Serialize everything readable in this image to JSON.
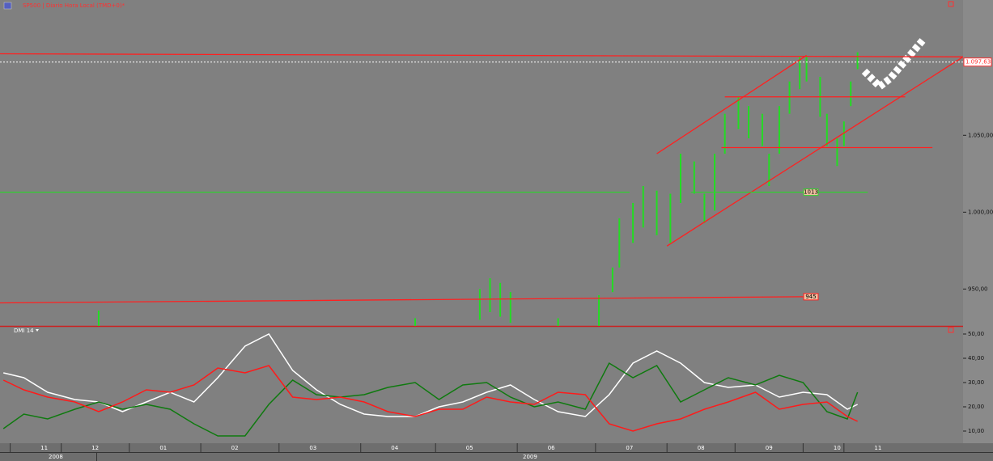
{
  "chart_data": [
    {
      "type": "range-bar",
      "title": "SP500 | Diario Hora Local (TMD+0)*",
      "color": "#22dd22",
      "x": [
        26,
        119,
        138,
        141,
        144,
        147,
        161,
        173,
        177,
        179,
        183,
        186,
        190,
        194,
        197,
        201,
        204,
        207,
        210,
        214,
        217,
        221,
        223,
        226,
        229,
        232,
        234,
        238,
        240,
        243,
        245,
        247,
        249
      ],
      "low": [
        920,
        920,
        930,
        935,
        932,
        928,
        920,
        920,
        948,
        964,
        980,
        990,
        985,
        980,
        1006,
        1012,
        993,
        1001,
        1038,
        1054,
        1048,
        1043,
        1017,
        1038,
        1064,
        1080,
        1085,
        1062,
        1043,
        1030,
        1043,
        1069,
        1093
      ],
      "high": [
        936,
        931,
        950,
        957,
        954,
        948,
        931,
        946,
        964,
        996,
        1006,
        1017,
        1014,
        1012,
        1038,
        1033,
        1012,
        1038,
        1064,
        1075,
        1069,
        1064,
        1038,
        1069,
        1085,
        1101,
        1101,
        1088,
        1064,
        1048,
        1059,
        1085,
        1104
      ],
      "xlim": [
        -3,
        280
      ],
      "ylim": [
        926,
        1138
      ],
      "yticks": [
        {
          "value": 950,
          "label": "950,00"
        },
        {
          "value": 1000,
          "label": "1.000,00"
        },
        {
          "value": 1050,
          "label": "1.050,00"
        }
      ],
      "last_price": {
        "value": 1097.63,
        "label": "1.097,63"
      },
      "levels": [
        {
          "value": 945,
          "color": "#ff2020"
        },
        {
          "value": 1013,
          "color": "#30d030"
        }
      ],
      "trendlines": [
        {
          "x": [
            -3,
            280
          ],
          "y": [
            1103,
            1101
          ],
          "color": "#ff2020"
        },
        {
          "x": [
            190,
            234
          ],
          "y": [
            1038,
            1102
          ],
          "color": "#ff2020"
        },
        {
          "x": [
            193,
            280
          ],
          "y": [
            978,
            1101
          ],
          "color": "#ff2020"
        },
        {
          "x": [
            210,
            263
          ],
          "y": [
            1075,
            1075
          ],
          "color": "#ff2020"
        },
        {
          "x": [
            209,
            271
          ],
          "y": [
            1042,
            1042
          ],
          "color": "#ff2020"
        },
        {
          "x": [
            -3,
            233
          ],
          "y": [
            941,
            945
          ],
          "color": "#ff2020"
        },
        {
          "x": [
            -3,
            182
          ],
          "y": [
            1013,
            1013
          ],
          "color": "#30d030"
        },
        {
          "x": [
            200,
            252
          ],
          "y": [
            1013,
            1013
          ],
          "color": "#30d030"
        }
      ]
    },
    {
      "type": "line",
      "title": "DMI 14",
      "x": [
        -2,
        4,
        11,
        19,
        26,
        33,
        40,
        47,
        54,
        61,
        69,
        76,
        83,
        90,
        97,
        104,
        111,
        119,
        126,
        133,
        140,
        147,
        154,
        161,
        169,
        176,
        183,
        190,
        197,
        204,
        211,
        219,
        226,
        233,
        240,
        246,
        249
      ],
      "series": [
        {
          "color": "#ffffff",
          "values": [
            34,
            32,
            26,
            23,
            22,
            18,
            22,
            26,
            22,
            32,
            45,
            50,
            35,
            27,
            21,
            17,
            16,
            16,
            20,
            22,
            26,
            29,
            23,
            18,
            16,
            25,
            38,
            43,
            38,
            30,
            28,
            29,
            24,
            26,
            25,
            19,
            21
          ]
        },
        {
          "color": "#0f7a0f",
          "values": [
            11,
            17,
            15,
            19,
            22,
            19,
            21,
            19,
            13,
            8,
            8,
            21,
            31,
            25,
            24,
            25,
            28,
            30,
            23,
            29,
            30,
            24,
            20,
            22,
            19,
            38,
            32,
            37,
            22,
            27,
            32,
            29,
            33,
            30,
            18,
            15,
            26
          ]
        },
        {
          "color": "#ff1a1a",
          "values": [
            31,
            27,
            24,
            22,
            18,
            22,
            27,
            26,
            29,
            36,
            34,
            37,
            24,
            23,
            24,
            22,
            18,
            16,
            19,
            19,
            24,
            22,
            21,
            26,
            25,
            13,
            10,
            13,
            15,
            19,
            22,
            26,
            19,
            21,
            22,
            16,
            14
          ]
        }
      ],
      "xlim": [
        -3,
        280
      ],
      "ylim": [
        5,
        53
      ],
      "yticks": [
        {
          "value": 10,
          "label": "10,00"
        },
        {
          "value": 20,
          "label": "20,00"
        },
        {
          "value": 30,
          "label": "30,00"
        },
        {
          "value": 40,
          "label": "40,00"
        },
        {
          "value": 50,
          "label": "50,00"
        }
      ],
      "xticks": [
        {
          "value": 0,
          "label": "11"
        },
        {
          "value": 15,
          "label": "12"
        },
        {
          "value": 35,
          "label": "01"
        },
        {
          "value": 56,
          "label": "02"
        },
        {
          "value": 79,
          "label": "03"
        },
        {
          "value": 103,
          "label": "04"
        },
        {
          "value": 125,
          "label": "05"
        },
        {
          "value": 149,
          "label": "06"
        },
        {
          "value": 172,
          "label": "07"
        },
        {
          "value": 193,
          "label": "08"
        },
        {
          "value": 213,
          "label": "09"
        },
        {
          "value": 233,
          "label": "10"
        },
        {
          "value": 245,
          "label": "11"
        }
      ],
      "years": [
        "2008",
        "2009"
      ]
    }
  ]
}
